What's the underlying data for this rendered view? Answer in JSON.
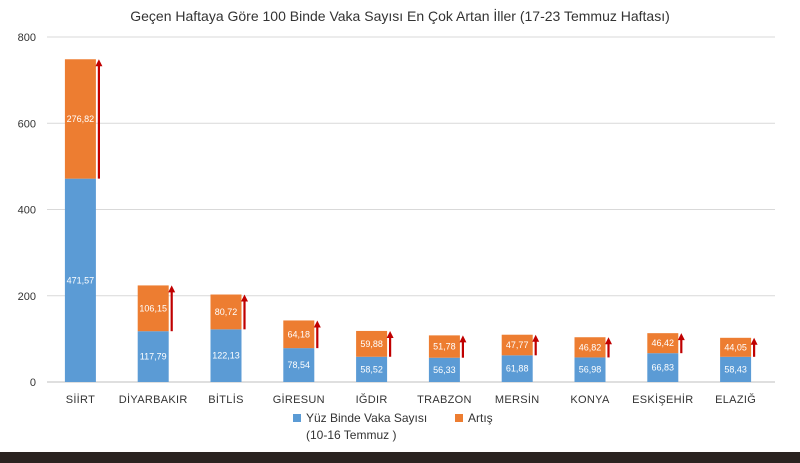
{
  "chart_data": {
    "type": "bar",
    "stacked": true,
    "title": "Geçen Haftaya Göre 100 Binde Vaka Sayısı En Çok Artan İller (17-23 Temmuz Haftası)",
    "xlabel": "",
    "ylabel": "",
    "ylim": [
      0,
      800
    ],
    "yticks": [
      "0",
      "200",
      "400",
      "600",
      "800"
    ],
    "grid": true,
    "legend_position": "bottom",
    "categories": [
      "SİİRT",
      "DİYARBAKIR",
      "BİTLİS",
      "GİRESUN",
      "IĞDIR",
      "TRABZON",
      "MERSİN",
      "KONYA",
      "ESKİŞEHİR",
      "ELAZIĞ"
    ],
    "series": [
      {
        "name": "Yüz Binde Vaka Sayısı (10-16 Temmuz )",
        "legend_lines": [
          "Yüz Binde Vaka Sayısı",
          "(10-16 Temmuz )"
        ],
        "color": "#5B9BD5",
        "values": [
          471.57,
          117.79,
          122.13,
          78.54,
          58.52,
          56.33,
          61.88,
          56.98,
          66.83,
          58.43
        ],
        "labels": [
          "471,57",
          "117,79",
          "122,13",
          "78,54",
          "58,52",
          "56,33",
          "61,88",
          "56,98",
          "66,83",
          "58,43"
        ]
      },
      {
        "name": "Artış",
        "legend_lines": [
          "Artış"
        ],
        "color": "#ED7D31",
        "values": [
          276.82,
          106.15,
          80.72,
          64.18,
          59.88,
          51.78,
          47.77,
          46.82,
          46.42,
          44.05
        ],
        "labels": [
          "276,82",
          "106,15",
          "80,72",
          "64,18",
          "59,88",
          "51,78",
          "47,77",
          "46,82",
          "46,42",
          "44,05"
        ]
      }
    ],
    "annotations": {
      "arrow_color": "#C00000",
      "arrows": "upward arrow beside each bar spanning the Artış segment"
    }
  }
}
